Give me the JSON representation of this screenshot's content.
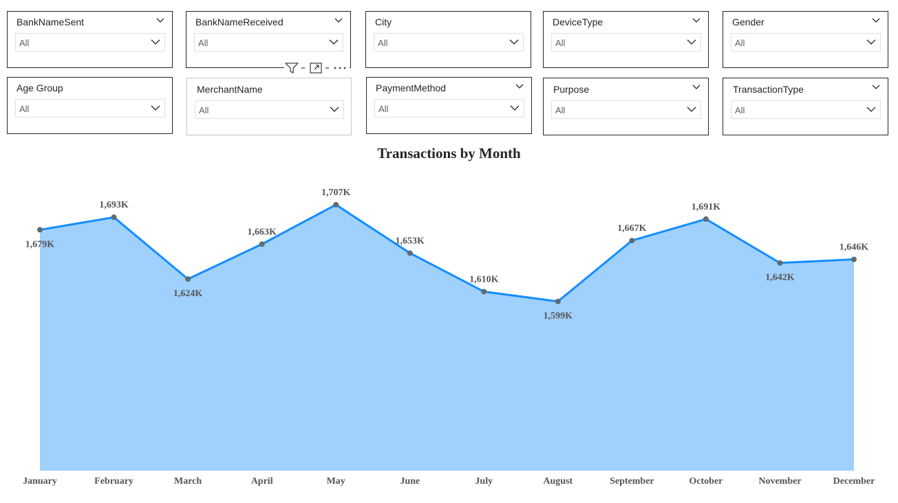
{
  "slicers": [
    {
      "title": "BankNameSent",
      "value": "All",
      "header_chevron": true
    },
    {
      "title": "BankNameReceived",
      "value": "All",
      "header_chevron": true
    },
    {
      "title": "City",
      "value": "All",
      "header_chevron": false
    },
    {
      "title": "DeviceType",
      "value": "All",
      "header_chevron": true
    },
    {
      "title": "Gender",
      "value": "All",
      "header_chevron": true
    },
    {
      "title": "Age Group",
      "value": "All",
      "header_chevron": false
    },
    {
      "title": "MerchantName",
      "value": "All",
      "header_chevron": false
    },
    {
      "title": "PaymentMethod",
      "value": "All",
      "header_chevron": true
    },
    {
      "title": "Purpose",
      "value": "All",
      "header_chevron": true
    },
    {
      "title": "TransactionType",
      "value": "All",
      "header_chevron": true
    }
  ],
  "visual_header_icons": [
    "filter-icon",
    "focus-mode-icon",
    "more-options-icon"
  ],
  "chart_data": {
    "type": "area",
    "title": "Transactions by Month",
    "categories": [
      "January",
      "February",
      "March",
      "April",
      "May",
      "June",
      "July",
      "August",
      "September",
      "October",
      "November",
      "December"
    ],
    "values": [
      1679,
      1693,
      1624,
      1663,
      1707,
      1653,
      1610,
      1599,
      1667,
      1691,
      1642,
      1646
    ],
    "labels": [
      "1,679K",
      "1,693K",
      "1,624K",
      "1,663K",
      "1,707K",
      "1,653K",
      "1,610K",
      "1,599K",
      "1,667K",
      "1,691K",
      "1,642K",
      "1,646K"
    ],
    "label_positions": [
      "below",
      "above",
      "below",
      "above",
      "above",
      "above",
      "above",
      "below",
      "above",
      "above",
      "below",
      "above"
    ],
    "ylim": [
      1410,
      1720
    ],
    "grid": false,
    "line_color": "#118DFF",
    "fill_color": "#A0D0FC",
    "marker_color": "#5F6B6D"
  }
}
